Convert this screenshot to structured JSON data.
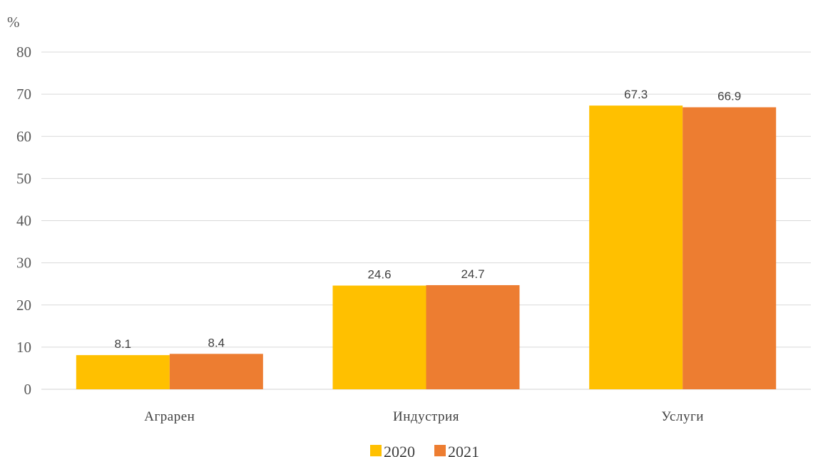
{
  "chart_data": {
    "type": "bar",
    "ylabel": "%",
    "ylim": [
      0,
      80
    ],
    "yticks": [
      0,
      10,
      20,
      30,
      40,
      50,
      60,
      70,
      80
    ],
    "grid": true,
    "legend_position": "bottom-center",
    "categories": [
      "Аграрен",
      "Индустрия",
      "Услуги"
    ],
    "series": [
      {
        "name": "2020",
        "color": "#FFC000",
        "values": [
          8.1,
          24.6,
          67.3
        ]
      },
      {
        "name": "2021",
        "color": "#ED7D31",
        "values": [
          8.4,
          24.7,
          66.9
        ]
      }
    ]
  }
}
